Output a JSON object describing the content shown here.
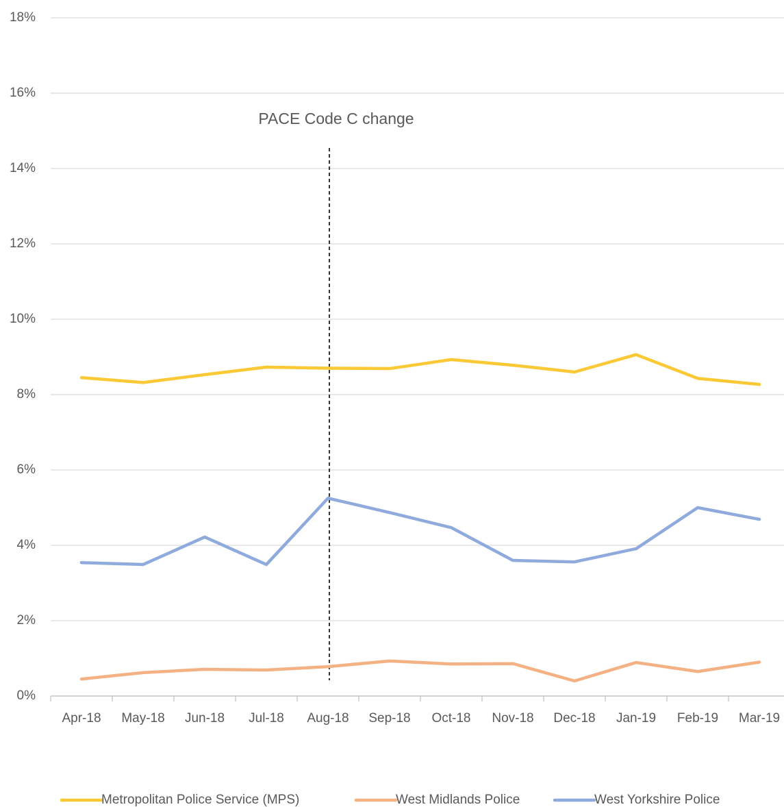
{
  "chart_data": {
    "type": "line",
    "categories": [
      "Apr-18",
      "May-18",
      "Jun-18",
      "Jul-18",
      "Aug-18",
      "Sep-18",
      "Oct-18",
      "Nov-18",
      "Dec-18",
      "Jan-19",
      "Feb-19",
      "Mar-19"
    ],
    "series": [
      {
        "name": "Metropolitan Police Service (MPS)",
        "color": "#fac935",
        "values": [
          8.45,
          8.32,
          8.53,
          8.73,
          8.7,
          8.69,
          8.93,
          8.78,
          8.6,
          9.06,
          8.43,
          8.27
        ]
      },
      {
        "name": "West Midlands Police",
        "color": "#f4b183",
        "values": [
          0.45,
          0.62,
          0.71,
          0.69,
          0.78,
          0.93,
          0.85,
          0.86,
          0.4,
          0.89,
          0.65,
          0.9
        ]
      },
      {
        "name": "West Yorkshire Police",
        "color": "#8faadc",
        "values": [
          3.54,
          3.49,
          4.22,
          3.49,
          5.25,
          4.87,
          4.47,
          3.6,
          3.56,
          3.91,
          5.0,
          4.69
        ]
      }
    ],
    "ylim": [
      0,
      18
    ],
    "yticks": [
      {
        "value": 0,
        "label": "0%"
      },
      {
        "value": 2,
        "label": "2%"
      },
      {
        "value": 4,
        "label": "4%"
      },
      {
        "value": 6,
        "label": "6%"
      },
      {
        "value": 8,
        "label": "8%"
      },
      {
        "value": 10,
        "label": "10%"
      },
      {
        "value": 12,
        "label": "12%"
      },
      {
        "value": 14,
        "label": "14%"
      },
      {
        "value": 16,
        "label": "16%"
      },
      {
        "value": 18,
        "label": "18%"
      }
    ],
    "grid": true,
    "legend": "bottom",
    "annotation": {
      "text": "PACE Code C change",
      "x": "Aug-18"
    }
  }
}
